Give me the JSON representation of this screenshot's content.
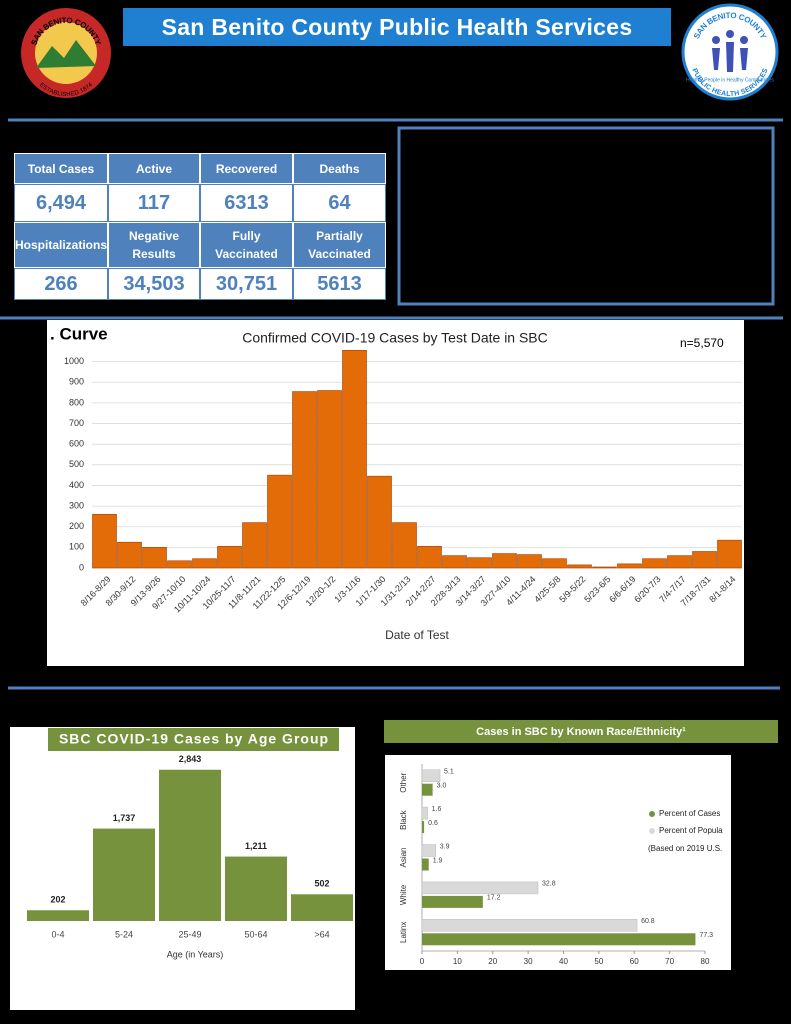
{
  "header": {
    "title": "San Benito County Public Health Services",
    "logo_left": {
      "top": "SAN BENITO COUNTY",
      "bottom": "ESTABLISHED 1874"
    },
    "logo_right": {
      "top": "SAN BENITO COUNTY",
      "middle": "Healthy People in Healthy Communities",
      "bottom": "PUBLIC HEALTH SERVICES"
    }
  },
  "stats": {
    "rows": [
      [
        "Total Cases",
        "Active",
        "Recovered",
        "Deaths"
      ],
      [
        "6,494",
        "117",
        "6313",
        "64"
      ],
      [
        "Hospitalizations",
        "Negative Results",
        "Fully Vaccinated",
        "Partially Vaccinated"
      ],
      [
        "266",
        "34,503",
        "30,751",
        "5613"
      ]
    ]
  },
  "chart_data": [
    {
      "type": "bar",
      "title": "Confirmed COVID-19 Cases by Test Date in SBC",
      "section_label": ". Curve",
      "annotation": "n=5,570",
      "x_label": "Date of Test",
      "color": "#e36c09",
      "grid": true,
      "categories": [
        "8/16-8/29",
        "8/30-9/12",
        "9/13-9/26",
        "9/27-10/10",
        "10/11-10/24",
        "10/25-11/7",
        "11/8-11/21",
        "11/22-12/5",
        "12/6-12/19",
        "12/20-1/2",
        "1/3-1/16",
        "1/17-1/30",
        "1/31-2/13",
        "2/14-2/27",
        "2/28-3/13",
        "3/14-3/27",
        "3/27-4/10",
        "4/11-4/24",
        "4/25-5/8",
        "5/9-5/22",
        "5/23-6/5",
        "6/6-6/19",
        "6/20-7/3",
        "7/4-7/17",
        "7/18-7/31",
        "8/1-8/14"
      ],
      "values": [
        260,
        125,
        100,
        35,
        45,
        105,
        220,
        450,
        855,
        860,
        1055,
        445,
        220,
        105,
        60,
        50,
        70,
        65,
        45,
        15,
        5,
        20,
        45,
        60,
        80,
        135
      ],
      "ylim": [
        0,
        1100
      ],
      "yticks": [
        0,
        100,
        200,
        300,
        400,
        500,
        600,
        700,
        800,
        900,
        1000
      ]
    },
    {
      "type": "bar",
      "title": "SBC COVID-19 Cases by Age Group",
      "x_label": "Age (in Years)",
      "color": "#76923c",
      "categories": [
        "0-4",
        "5-24",
        "25-49",
        "50-64",
        ">64"
      ],
      "values": [
        202,
        1737,
        2843,
        1211,
        502
      ],
      "value_labels": [
        "202",
        "1,737",
        "2,843",
        "1,211",
        "502"
      ]
    },
    {
      "type": "hbar",
      "title": "Cases in SBC by Known Race/Ethnicity¹",
      "categories": [
        "Other",
        "Black",
        "Asian",
        "White",
        "Latinx"
      ],
      "series": [
        {
          "name": "Percent of Cases",
          "color": "#76923c",
          "values": [
            3.0,
            0.6,
            1.9,
            17.2,
            77.3
          ],
          "value_labels": [
            "3.0",
            "0.6",
            "1.9",
            "17.2",
            "77.3"
          ]
        },
        {
          "name": "Percent of Popula",
          "color": "#d9d9d9",
          "values": [
            5.1,
            1.6,
            3.9,
            32.8,
            60.8
          ],
          "value_labels": [
            "5.1",
            "1.6",
            "3.9",
            "32.8",
            "60.8"
          ]
        }
      ],
      "legend_note": "(Based on 2019 U.S.",
      "xlim": [
        0,
        80
      ],
      "xticks": [
        0,
        10,
        20,
        30,
        40,
        50,
        60,
        70,
        80
      ]
    }
  ]
}
